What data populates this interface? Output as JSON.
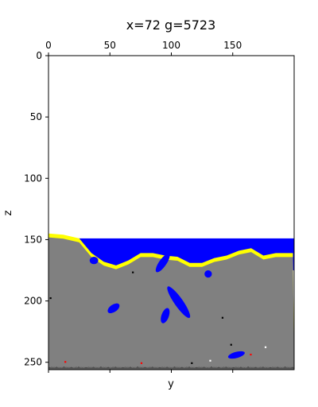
{
  "chart_data": {
    "type": "heatmap",
    "title": "x=72 g=5723",
    "xlabel": "y",
    "ylabel": "z",
    "xlim": [
      0,
      200
    ],
    "ylim": [
      256,
      0
    ],
    "x_ticks_top": [
      0,
      50,
      100,
      150
    ],
    "y_ticks": [
      0,
      50,
      100,
      150,
      200,
      250
    ],
    "grid": false,
    "legend": "none",
    "colors": {
      "air": "#ffffff",
      "water": "#0000ff",
      "sand": "#ffff00",
      "stone": "#808080",
      "bedrock": "#5a5a5a",
      "ore_black": "#000000",
      "ore_red": "#ff0000",
      "ore_white": "#ffffff"
    },
    "water_level": 149,
    "surface_profile": [
      [
        0,
        145
      ],
      [
        12,
        146
      ],
      [
        25,
        149
      ],
      [
        35,
        161
      ],
      [
        45,
        168
      ],
      [
        55,
        171
      ],
      [
        65,
        167
      ],
      [
        75,
        161
      ],
      [
        85,
        161
      ],
      [
        95,
        163
      ],
      [
        105,
        164
      ],
      [
        115,
        169
      ],
      [
        125,
        169
      ],
      [
        135,
        165
      ],
      [
        145,
        163
      ],
      [
        155,
        159
      ],
      [
        165,
        157
      ],
      [
        175,
        163
      ],
      [
        185,
        161
      ],
      [
        199,
        161
      ]
    ],
    "bedrock_top": 254,
    "water_pockets": [
      {
        "y": 37,
        "z": 167,
        "len": 7,
        "width": 6,
        "angle": 0
      },
      {
        "y": 93,
        "z": 169,
        "len": 18,
        "width": 6,
        "angle": -55
      },
      {
        "y": 130,
        "z": 178,
        "len": 6,
        "width": 6,
        "angle": 0
      },
      {
        "y": 106,
        "z": 201,
        "len": 31,
        "width": 7,
        "angle": 55
      },
      {
        "y": 53,
        "z": 206,
        "len": 11,
        "width": 6,
        "angle": -35
      },
      {
        "y": 95,
        "z": 212,
        "len": 13,
        "width": 6,
        "angle": -70
      },
      {
        "y": 153,
        "z": 244,
        "len": 14,
        "width": 5,
        "angle": -15
      }
    ],
    "ore_specks": [
      {
        "y": 68,
        "z": 176,
        "color": "ore_black"
      },
      {
        "y": 1,
        "z": 197,
        "color": "ore_black"
      },
      {
        "y": 141,
        "z": 213,
        "color": "ore_black"
      },
      {
        "y": 148,
        "z": 235,
        "color": "ore_black"
      },
      {
        "y": 164,
        "z": 243,
        "color": "ore_red"
      },
      {
        "y": 176,
        "z": 237,
        "color": "ore_white"
      },
      {
        "y": 13,
        "z": 249,
        "color": "ore_red"
      },
      {
        "y": 75,
        "z": 250,
        "color": "ore_red"
      },
      {
        "y": 116,
        "z": 250,
        "color": "ore_black"
      },
      {
        "y": 131,
        "z": 248,
        "color": "ore_white"
      }
    ]
  }
}
